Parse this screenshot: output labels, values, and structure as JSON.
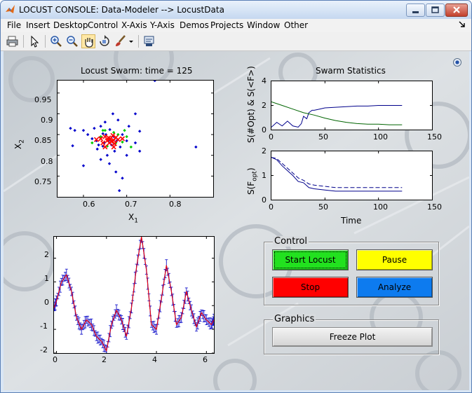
{
  "window": {
    "title": "LOCUST CONSOLE: Data-Modeler --> LocustData"
  },
  "menu": [
    "File",
    "Insert",
    "Desktop",
    "Control",
    "X-Axis",
    "Y-Axis",
    "Demos",
    "Projects",
    "Window",
    "Other"
  ],
  "toolbar": [
    "print-icon",
    "pointer-icon",
    "zoom-in-icon",
    "zoom-out-icon",
    "pan-hand-icon",
    "rotate-icon",
    "brush-icon",
    "dropdown-arrow-icon",
    "data-link-icon"
  ],
  "colors": {
    "green_button": "#22e11f",
    "yellow_button": "#ffff00",
    "red_button": "#ff0000",
    "blue_button": "#0d7bef",
    "figure_bg": "#cfd4d9"
  },
  "swarm_plot": {
    "title": "Locust Swarm: time = 125",
    "xlabel_main": "X",
    "xlabel_sub": "1",
    "ylabel_main": "X",
    "ylabel_sub": "2",
    "xticks": [
      "0.6",
      "0.7",
      "0.8"
    ],
    "yticks": [
      "0.95",
      "0.9",
      "0.85",
      "0.8",
      "0.75"
    ]
  },
  "stats": {
    "title": "Swarm Statistics",
    "top_ylabel": "S(#Opt) & S(<F>)",
    "top_yticks": [
      "4",
      "2",
      "0"
    ],
    "top_xticks": [
      "0",
      "50",
      "100",
      "150"
    ],
    "bottom_ylabel_main": "S(F",
    "bottom_ylabel_sub": "opt",
    "bottom_ylabel_end": ")",
    "bottom_yticks": [
      "2",
      "1",
      "0"
    ],
    "bottom_xticks": [
      "0",
      "50",
      "100",
      "150"
    ],
    "xlabel": "Time"
  },
  "model_plot": {
    "yticks": [
      "2",
      "1",
      "0",
      "-1",
      "-2"
    ],
    "xticks": [
      "0",
      "2",
      "4",
      "6"
    ]
  },
  "control": {
    "title": "Control",
    "start_label": "Start Locust",
    "pause_label": "Pause",
    "stop_label": "Stop",
    "analyze_label": "Analyze"
  },
  "graphics": {
    "title": "Graphics",
    "freeze_label": "Freeze Plot"
  },
  "chart_data": [
    {
      "type": "scatter",
      "title": "Locust Swarm: time = 125",
      "xlabel": "X1",
      "ylabel": "X2",
      "xlim": [
        0.54,
        0.9
      ],
      "ylim": [
        0.7,
        0.98
      ],
      "series": [
        {
          "color": "#0000cc",
          "points": [
            [
              0.57,
              0.865
            ],
            [
              0.58,
              0.86
            ],
            [
              0.575,
              0.823
            ],
            [
              0.6,
              0.86
            ],
            [
              0.61,
              0.85
            ],
            [
              0.62,
              0.84
            ],
            [
              0.625,
              0.865
            ],
            [
              0.63,
              0.835
            ],
            [
              0.632,
              0.815
            ],
            [
              0.64,
              0.87
            ],
            [
              0.64,
              0.79
            ],
            [
              0.645,
              0.852
            ],
            [
              0.648,
              0.83
            ],
            [
              0.65,
              0.88
            ],
            [
              0.652,
              0.85
            ],
            [
              0.655,
              0.8
            ],
            [
              0.658,
              0.835
            ],
            [
              0.66,
              0.78
            ],
            [
              0.661,
              0.862
            ],
            [
              0.665,
              0.825
            ],
            [
              0.668,
              0.9
            ],
            [
              0.67,
              0.845
            ],
            [
              0.672,
              0.81
            ],
            [
              0.675,
              0.76
            ],
            [
              0.677,
              0.835
            ],
            [
              0.68,
              0.885
            ],
            [
              0.685,
              0.82
            ],
            [
              0.69,
              0.745
            ],
            [
              0.69,
              0.85
            ],
            [
              0.7,
              0.8
            ],
            [
              0.7,
              0.835
            ],
            [
              0.705,
              0.87
            ],
            [
              0.72,
              0.83
            ],
            [
              0.72,
              0.9
            ],
            [
              0.73,
              0.858
            ],
            [
              0.73,
              0.81
            ],
            [
              0.765,
              0.98
            ],
            [
              0.86,
              0.82
            ],
            [
              0.6,
              0.775
            ],
            [
              0.683,
              0.715
            ],
            [
              0.635,
              0.825
            ],
            [
              0.645,
              0.822
            ]
          ]
        },
        {
          "color": "#00cc00",
          "points": [
            [
              0.62,
              0.83
            ],
            [
              0.64,
              0.845
            ],
            [
              0.65,
              0.86
            ],
            [
              0.66,
              0.84
            ],
            [
              0.67,
              0.855
            ],
            [
              0.675,
              0.83
            ],
            [
              0.68,
              0.85
            ],
            [
              0.69,
              0.832
            ],
            [
              0.695,
              0.86
            ],
            [
              0.7,
              0.845
            ],
            [
              0.71,
              0.82
            ],
            [
              0.655,
              0.822
            ],
            [
              0.645,
              0.86
            ]
          ]
        },
        {
          "color": "#ff0000",
          "points": [
            [
              0.64,
              0.84
            ],
            [
              0.645,
              0.83
            ],
            [
              0.65,
              0.845
            ],
            [
              0.655,
              0.835
            ],
            [
              0.658,
              0.842
            ],
            [
              0.66,
              0.83
            ],
            [
              0.662,
              0.84
            ],
            [
              0.665,
              0.833
            ],
            [
              0.668,
              0.848
            ],
            [
              0.67,
              0.836
            ],
            [
              0.672,
              0.828
            ],
            [
              0.675,
              0.843
            ],
            [
              0.68,
              0.838
            ],
            [
              0.69,
              0.84
            ],
            [
              0.63,
              0.838
            ],
            [
              0.65,
              0.82
            ],
            [
              0.67,
              0.82
            ]
          ]
        }
      ]
    },
    {
      "type": "line",
      "ylabel": "S(#Opt) & S(<F>)",
      "xlim": [
        0,
        150
      ],
      "ylim": [
        0,
        4
      ],
      "series": [
        {
          "color": "#00008b",
          "x": [
            0,
            5,
            10,
            15,
            20,
            25,
            28,
            30,
            33,
            35,
            38,
            40,
            45,
            50,
            60,
            70,
            80,
            90,
            100,
            110,
            122
          ],
          "y": [
            0.2,
            0.6,
            0.3,
            0.7,
            0.3,
            0.2,
            0.5,
            1.1,
            0.9,
            1.4,
            1.6,
            1.6,
            1.7,
            1.8,
            1.85,
            1.9,
            1.95,
            1.95,
            2.0,
            2.0,
            2.0
          ]
        },
        {
          "color": "#006400",
          "x": [
            0,
            10,
            20,
            30,
            40,
            50,
            60,
            70,
            80,
            90,
            100,
            110,
            122
          ],
          "y": [
            2.3,
            2.0,
            1.7,
            1.4,
            1.2,
            0.95,
            0.75,
            0.6,
            0.5,
            0.45,
            0.45,
            0.4,
            0.4
          ]
        }
      ]
    },
    {
      "type": "line",
      "ylabel": "S(Fopt)",
      "xlabel": "Time",
      "xlim": [
        0,
        150
      ],
      "ylim": [
        0,
        2
      ],
      "series": [
        {
          "color": "#00008b",
          "style": "dashed",
          "x": [
            0,
            5,
            10,
            15,
            20,
            25,
            30,
            35,
            40,
            50,
            60,
            70,
            80,
            90,
            100,
            110,
            122
          ],
          "y": [
            1.75,
            1.7,
            1.5,
            1.3,
            1.1,
            0.9,
            0.8,
            0.65,
            0.6,
            0.55,
            0.5,
            0.5,
            0.5,
            0.5,
            0.5,
            0.5,
            0.5
          ]
        },
        {
          "color": "#00008b",
          "style": "solid",
          "x": [
            0,
            5,
            10,
            15,
            20,
            25,
            30,
            35,
            40,
            50,
            60,
            70,
            80,
            90,
            100,
            110,
            122
          ],
          "y": [
            1.75,
            1.65,
            1.4,
            1.2,
            1.0,
            0.75,
            0.7,
            0.5,
            0.45,
            0.4,
            0.35,
            0.35,
            0.35,
            0.35,
            0.35,
            0.35,
            0.35
          ]
        }
      ]
    },
    {
      "type": "line",
      "xlim": [
        -0.1,
        6.3
      ],
      "ylim": [
        -2,
        2.9
      ],
      "series": [
        {
          "color": "#ff0000",
          "name": "model",
          "x": [
            -0.1,
            0.0,
            0.2,
            0.4,
            0.6,
            0.8,
            1.0,
            1.2,
            1.4,
            1.6,
            1.8,
            2.0,
            2.2,
            2.4,
            2.6,
            2.8,
            3.0,
            3.2,
            3.4,
            3.6,
            3.8,
            4.0,
            4.2,
            4.4,
            4.6,
            4.8,
            5.0,
            5.2,
            5.4,
            5.6,
            5.8,
            6.0,
            6.2,
            6.3
          ],
          "y": [
            -0.1,
            0.2,
            1.0,
            1.3,
            0.6,
            -0.5,
            -1.0,
            -0.6,
            -0.8,
            -1.3,
            -1.5,
            -1.9,
            -0.8,
            -0.2,
            -0.6,
            -1.3,
            -0.1,
            1.6,
            2.9,
            1.5,
            -0.8,
            -1.0,
            0.3,
            1.7,
            0.6,
            -0.8,
            -0.5,
            0.6,
            -0.2,
            -0.9,
            -0.3,
            -0.6,
            -0.8,
            -0.6
          ]
        }
      ]
    }
  ]
}
